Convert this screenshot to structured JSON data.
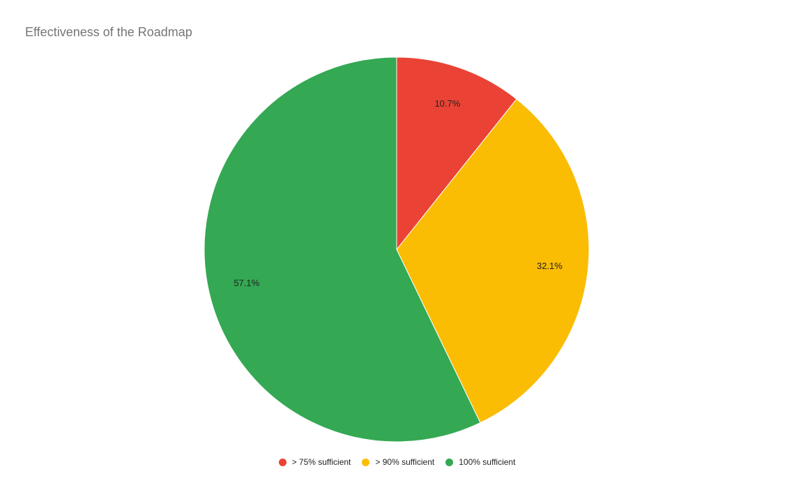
{
  "chart_data": {
    "type": "pie",
    "title": "Effectiveness of the Roadmap",
    "slices": [
      {
        "name": "> 75% sufficient",
        "value": 10.7,
        "label": "10.7%",
        "color": "#EA4335"
      },
      {
        "name": "> 90% sufficient",
        "value": 32.1,
        "label": "32.1%",
        "color": "#FBBC04"
      },
      {
        "name": "100% sufficient",
        "value": 57.1,
        "label": "57.1%",
        "color": "#34A853"
      }
    ],
    "legend_position": "bottom"
  }
}
